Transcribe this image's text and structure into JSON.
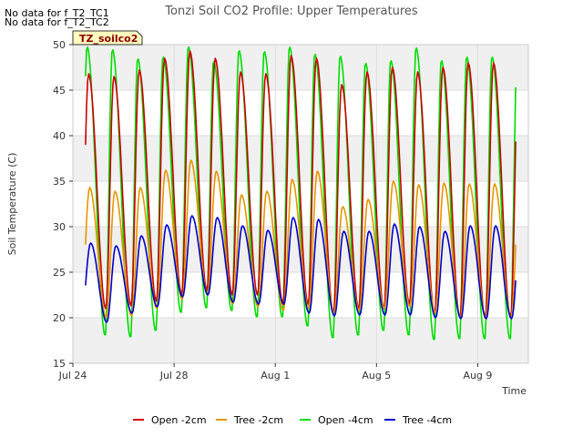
{
  "notices": [
    "No data for f_T2_TC1",
    "No data for f_T2_TC2"
  ],
  "badge_label": "TZ_soilco2",
  "chart_data": {
    "type": "line",
    "title": "Tonzi Soil CO2 Profile: Upper Temperatures",
    "xlabel": "Time",
    "ylabel": "Soil Temperature (C)",
    "ylim": [
      15,
      50
    ],
    "yticks": [
      15,
      20,
      25,
      30,
      35,
      40,
      45,
      50
    ],
    "xlim_days": [
      0,
      18
    ],
    "xticks": [
      {
        "label": "Jul 24",
        "day": 0
      },
      {
        "label": "Jul 28",
        "day": 4
      },
      {
        "label": "Aug 1",
        "day": 8
      },
      {
        "label": "Aug 5",
        "day": 12
      },
      {
        "label": "Aug 9",
        "day": 16
      }
    ],
    "grid": true,
    "legend_position": "bottom",
    "series": [
      {
        "name": "Open -2cm",
        "color": "#cc0000",
        "max": [
          46.8,
          46.5,
          47.2,
          48.5,
          49.3,
          48.5,
          47.0,
          46.8,
          48.8,
          48.5,
          45.6,
          47.0,
          47.5,
          47.0,
          47.5,
          48.0
        ],
        "min": [
          21.5,
          21.0,
          21.3,
          21.8,
          22.5,
          23.0,
          22.5,
          22.5,
          21.5,
          21.5,
          20.5,
          21.0,
          21.0,
          21.5,
          20.5,
          20.0
        ]
      },
      {
        "name": "Tree -2cm",
        "color": "#e69500",
        "max": [
          34.3,
          33.9,
          34.3,
          36.2,
          37.3,
          36.1,
          33.5,
          33.9,
          35.2,
          36.1,
          32.2,
          33.0,
          35.0,
          34.6,
          34.8,
          34.7
        ],
        "min": [
          20.5,
          20.0,
          20.2,
          21.0,
          22.0,
          22.5,
          21.5,
          21.2,
          20.8,
          21.0,
          20.5,
          20.8,
          21.0,
          21.2,
          20.5,
          20.0
        ]
      },
      {
        "name": "Open -4cm",
        "color": "#00dd00",
        "max": [
          49.8,
          49.5,
          48.5,
          48.7,
          49.8,
          48.2,
          49.4,
          49.3,
          49.8,
          49.0,
          48.8,
          48.0,
          48.3,
          49.7,
          48.3,
          48.7
        ],
        "min": [
          19.6,
          18.0,
          17.8,
          18.5,
          20.5,
          21.0,
          20.7,
          20.0,
          20.0,
          19.0,
          17.7,
          18.0,
          18.5,
          18.0,
          17.5,
          17.6
        ]
      },
      {
        "name": "Tree -4cm",
        "color": "#0000cc",
        "max": [
          28.2,
          27.9,
          29.0,
          30.2,
          31.2,
          31.0,
          30.1,
          29.6,
          31.0,
          30.8,
          29.5,
          29.5,
          30.3,
          30.0,
          29.5,
          30.1
        ],
        "min": [
          20.3,
          19.5,
          20.5,
          21.2,
          22.3,
          22.5,
          21.7,
          21.5,
          21.5,
          20.5,
          20.2,
          20.3,
          20.3,
          20.3,
          20.0,
          19.9
        ]
      }
    ]
  }
}
